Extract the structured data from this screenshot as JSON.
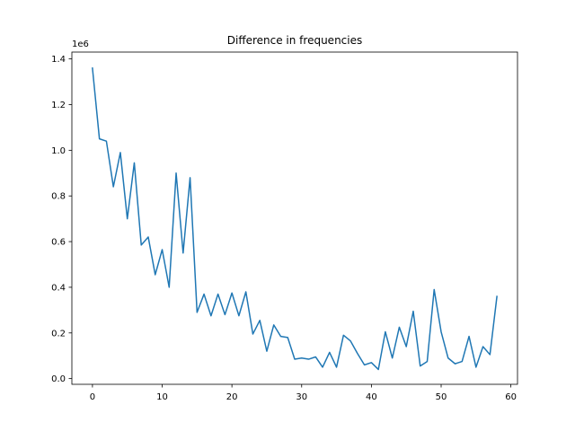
{
  "chart_data": {
    "type": "line",
    "title": "Difference in frequencies",
    "xlabel": "",
    "ylabel": "",
    "y_offset_label": "1e6",
    "xlim": [
      -2.95,
      60.95
    ],
    "ylim": [
      -0.025,
      1.43
    ],
    "x_ticks": [
      0,
      10,
      20,
      30,
      40,
      50,
      60
    ],
    "y_ticks": [
      0.0,
      0.2,
      0.4,
      0.6,
      0.8,
      1.0,
      1.2,
      1.4
    ],
    "y_tick_labels": [
      "0.0",
      "0.2",
      "0.4",
      "0.6",
      "0.8",
      "1.0",
      "1.2",
      "1.4"
    ],
    "grid": false,
    "line_color": "#1f77b4",
    "series": [
      {
        "x": [
          0,
          1,
          2,
          3,
          4,
          5,
          6,
          7,
          8,
          9,
          10,
          11,
          12,
          13,
          14,
          15,
          16,
          17,
          18,
          19,
          20,
          21,
          22,
          23,
          24,
          25,
          26,
          27,
          28,
          29,
          30,
          31,
          32,
          33,
          34,
          35,
          36,
          37,
          38,
          39,
          40,
          41,
          42,
          43,
          44,
          45,
          46,
          47,
          48,
          49,
          50,
          51,
          52,
          53,
          54,
          55,
          56,
          57,
          58
        ],
        "values": [
          1.36,
          1.05,
          1.04,
          0.84,
          0.99,
          0.7,
          0.945,
          0.585,
          0.62,
          0.455,
          0.565,
          0.4,
          0.9,
          0.55,
          0.88,
          0.29,
          0.37,
          0.275,
          0.37,
          0.28,
          0.375,
          0.275,
          0.38,
          0.195,
          0.255,
          0.12,
          0.235,
          0.185,
          0.18,
          0.085,
          0.09,
          0.085,
          0.095,
          0.05,
          0.115,
          0.05,
          0.19,
          0.165,
          0.11,
          0.06,
          0.07,
          0.04,
          0.205,
          0.09,
          0.225,
          0.14,
          0.295,
          0.055,
          0.075,
          0.39,
          0.205,
          0.09,
          0.065,
          0.075,
          0.185,
          0.05,
          0.14,
          0.105,
          0.36
        ]
      }
    ]
  }
}
